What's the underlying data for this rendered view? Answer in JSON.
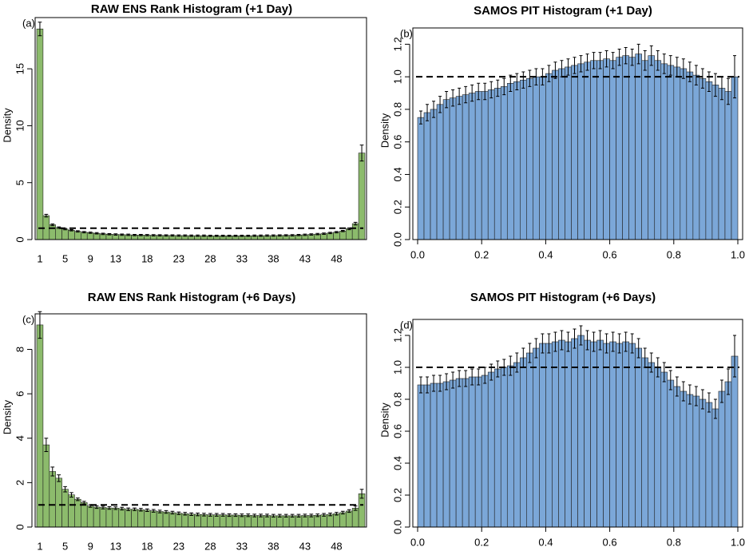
{
  "chart_data": [
    {
      "type": "bar",
      "title": "RAW ENS Rank Histogram (+1 Day)",
      "panel_label": "(a)",
      "ylabel": "Density",
      "color": "#8cbb6c",
      "hline": 1,
      "categories": [
        "1",
        null,
        null,
        null,
        "5",
        null,
        null,
        null,
        "9",
        null,
        null,
        null,
        "13",
        null,
        null,
        null,
        null,
        "18",
        null,
        null,
        null,
        null,
        "23",
        null,
        null,
        null,
        null,
        "28",
        null,
        null,
        null,
        null,
        "33",
        null,
        null,
        null,
        null,
        "38",
        null,
        null,
        null,
        null,
        "43",
        null,
        null,
        null,
        null,
        "48",
        null,
        null,
        null,
        null
      ],
      "values": [
        18.5,
        2.1,
        1.3,
        1.05,
        0.92,
        0.82,
        0.72,
        0.65,
        0.6,
        0.55,
        0.5,
        0.47,
        0.45,
        0.43,
        0.42,
        0.4,
        0.4,
        0.39,
        0.38,
        0.37,
        0.36,
        0.36,
        0.35,
        0.35,
        0.34,
        0.34,
        0.34,
        0.33,
        0.33,
        0.33,
        0.33,
        0.33,
        0.33,
        0.33,
        0.34,
        0.34,
        0.35,
        0.35,
        0.36,
        0.37,
        0.38,
        0.4,
        0.42,
        0.45,
        0.48,
        0.52,
        0.58,
        0.65,
        0.75,
        0.95,
        1.4,
        7.6
      ],
      "errors": [
        0.6,
        0.12,
        0.08,
        0.06,
        0.06,
        0.06,
        0.06,
        0.06,
        0.06,
        0.06,
        0.06,
        0.06,
        0.06,
        0.06,
        0.06,
        0.06,
        0.06,
        0.06,
        0.06,
        0.06,
        0.06,
        0.06,
        0.06,
        0.06,
        0.06,
        0.06,
        0.06,
        0.06,
        0.06,
        0.06,
        0.06,
        0.06,
        0.06,
        0.06,
        0.06,
        0.06,
        0.06,
        0.06,
        0.06,
        0.06,
        0.06,
        0.06,
        0.06,
        0.06,
        0.06,
        0.06,
        0.06,
        0.06,
        0.06,
        0.08,
        0.12,
        0.7
      ],
      "ylim": [
        0,
        19.5
      ],
      "yticks": [
        0,
        5,
        10,
        15
      ]
    },
    {
      "type": "histogram",
      "title": "SAMOS PIT Histogram (+1 Day)",
      "panel_label": "(b)",
      "ylabel": "Density",
      "color": "#7ba7d8",
      "hline": 1,
      "bins": [
        0,
        0.02,
        0.04,
        0.06,
        0.08,
        0.1,
        0.12,
        0.14,
        0.16,
        0.18,
        0.2,
        0.22,
        0.24,
        0.26,
        0.28,
        0.3,
        0.32,
        0.34,
        0.36,
        0.38,
        0.4,
        0.42,
        0.44,
        0.46,
        0.48,
        0.5,
        0.52,
        0.54,
        0.56,
        0.58,
        0.6,
        0.62,
        0.64,
        0.66,
        0.68,
        0.7,
        0.72,
        0.74,
        0.76,
        0.78,
        0.8,
        0.82,
        0.84,
        0.86,
        0.88,
        0.9,
        0.92,
        0.94,
        0.96,
        0.98,
        1
      ],
      "values": [
        0.75,
        0.78,
        0.8,
        0.83,
        0.86,
        0.87,
        0.88,
        0.89,
        0.9,
        0.91,
        0.91,
        0.92,
        0.93,
        0.94,
        0.96,
        0.97,
        0.98,
        0.99,
        1.0,
        1.0,
        1.02,
        1.04,
        1.05,
        1.06,
        1.07,
        1.08,
        1.09,
        1.1,
        1.1,
        1.11,
        1.1,
        1.12,
        1.13,
        1.12,
        1.14,
        1.1,
        1.13,
        1.1,
        1.08,
        1.07,
        1.06,
        1.05,
        1.03,
        1.01,
        0.99,
        0.97,
        0.95,
        0.93,
        0.91,
        1.0
      ],
      "errors": [
        0.04,
        0.05,
        0.05,
        0.05,
        0.05,
        0.05,
        0.05,
        0.05,
        0.05,
        0.05,
        0.05,
        0.05,
        0.05,
        0.05,
        0.05,
        0.05,
        0.05,
        0.05,
        0.05,
        0.05,
        0.05,
        0.05,
        0.05,
        0.05,
        0.05,
        0.05,
        0.05,
        0.05,
        0.05,
        0.05,
        0.05,
        0.05,
        0.05,
        0.05,
        0.06,
        0.06,
        0.06,
        0.06,
        0.06,
        0.06,
        0.06,
        0.06,
        0.06,
        0.06,
        0.06,
        0.06,
        0.07,
        0.07,
        0.08,
        0.13
      ],
      "xlim": [
        0,
        1
      ],
      "xticks": [
        {
          "value": 0,
          "label": "0.0"
        },
        {
          "value": 0.2,
          "label": "0.2"
        },
        {
          "value": 0.4,
          "label": "0.4"
        },
        {
          "value": 0.6,
          "label": "0.6"
        },
        {
          "value": 0.8,
          "label": "0.8"
        },
        {
          "value": 1,
          "label": "1.0"
        }
      ],
      "ylim": [
        0,
        1.3
      ],
      "yticks": [
        {
          "value": 0,
          "label": "0.0"
        },
        {
          "value": 0.2,
          "label": "0.2"
        },
        {
          "value": 0.4,
          "label": "0.4"
        },
        {
          "value": 0.6,
          "label": "0.6"
        },
        {
          "value": 0.8,
          "label": "0.8"
        },
        {
          "value": 1,
          "label": "1.0"
        },
        {
          "value": 1.2,
          "label": "1.2"
        }
      ]
    },
    {
      "type": "bar",
      "title": "RAW ENS Rank Histogram (+6 Days)",
      "panel_label": "(c)",
      "ylabel": "Density",
      "color": "#8cbb6c",
      "hline": 1,
      "categories": [
        "1",
        null,
        null,
        null,
        "5",
        null,
        null,
        null,
        "9",
        null,
        null,
        null,
        "13",
        null,
        null,
        null,
        null,
        "18",
        null,
        null,
        null,
        null,
        "23",
        null,
        null,
        null,
        null,
        "28",
        null,
        null,
        null,
        null,
        "33",
        null,
        null,
        null,
        null,
        "38",
        null,
        null,
        null,
        null,
        "43",
        null,
        null,
        null,
        null,
        "48",
        null,
        null,
        null,
        null
      ],
      "values": [
        9.1,
        3.7,
        2.5,
        2.2,
        1.7,
        1.45,
        1.25,
        1.1,
        0.95,
        0.9,
        0.88,
        0.86,
        0.85,
        0.83,
        0.8,
        0.8,
        0.78,
        0.76,
        0.73,
        0.7,
        0.68,
        0.65,
        0.62,
        0.6,
        0.58,
        0.57,
        0.56,
        0.55,
        0.55,
        0.55,
        0.54,
        0.54,
        0.53,
        0.53,
        0.52,
        0.52,
        0.52,
        0.51,
        0.51,
        0.51,
        0.51,
        0.51,
        0.52,
        0.52,
        0.53,
        0.55,
        0.57,
        0.6,
        0.65,
        0.72,
        0.85,
        1.5
      ],
      "errors": [
        0.6,
        0.3,
        0.2,
        0.15,
        0.12,
        0.1,
        0.06,
        0.06,
        0.06,
        0.06,
        0.06,
        0.06,
        0.06,
        0.06,
        0.06,
        0.06,
        0.06,
        0.06,
        0.06,
        0.06,
        0.06,
        0.06,
        0.06,
        0.06,
        0.06,
        0.06,
        0.06,
        0.06,
        0.06,
        0.06,
        0.06,
        0.06,
        0.06,
        0.06,
        0.06,
        0.06,
        0.06,
        0.06,
        0.06,
        0.06,
        0.06,
        0.06,
        0.06,
        0.06,
        0.06,
        0.06,
        0.06,
        0.06,
        0.06,
        0.06,
        0.1,
        0.2
      ],
      "ylim": [
        0,
        9.6
      ],
      "yticks": [
        0,
        2,
        4,
        6,
        8
      ]
    },
    {
      "type": "histogram",
      "title": "SAMOS PIT Histogram (+6 Days)",
      "panel_label": "(d)",
      "ylabel": "Density",
      "color": "#7ba7d8",
      "hline": 1,
      "bins": [
        0,
        0.02,
        0.04,
        0.06,
        0.08,
        0.1,
        0.12,
        0.14,
        0.16,
        0.18,
        0.2,
        0.22,
        0.24,
        0.26,
        0.28,
        0.3,
        0.32,
        0.34,
        0.36,
        0.38,
        0.4,
        0.42,
        0.44,
        0.46,
        0.48,
        0.5,
        0.52,
        0.54,
        0.56,
        0.58,
        0.6,
        0.62,
        0.64,
        0.66,
        0.68,
        0.7,
        0.72,
        0.74,
        0.76,
        0.78,
        0.8,
        0.82,
        0.84,
        0.86,
        0.88,
        0.9,
        0.92,
        0.94,
        0.96,
        0.98,
        1
      ],
      "values": [
        0.89,
        0.89,
        0.9,
        0.9,
        0.91,
        0.92,
        0.93,
        0.93,
        0.94,
        0.94,
        0.95,
        0.97,
        0.99,
        1.0,
        1.01,
        1.03,
        1.06,
        1.09,
        1.12,
        1.15,
        1.15,
        1.16,
        1.17,
        1.16,
        1.18,
        1.2,
        1.17,
        1.16,
        1.17,
        1.15,
        1.16,
        1.15,
        1.16,
        1.15,
        1.12,
        1.06,
        1.03,
        1.0,
        0.97,
        0.92,
        0.88,
        0.85,
        0.83,
        0.82,
        0.8,
        0.78,
        0.74,
        0.85,
        0.91,
        1.07
      ],
      "errors": [
        0.05,
        0.05,
        0.05,
        0.05,
        0.05,
        0.05,
        0.05,
        0.05,
        0.05,
        0.05,
        0.05,
        0.05,
        0.05,
        0.05,
        0.06,
        0.06,
        0.06,
        0.06,
        0.06,
        0.06,
        0.06,
        0.06,
        0.06,
        0.06,
        0.06,
        0.06,
        0.06,
        0.06,
        0.06,
        0.06,
        0.06,
        0.06,
        0.06,
        0.06,
        0.06,
        0.06,
        0.06,
        0.06,
        0.06,
        0.06,
        0.06,
        0.06,
        0.06,
        0.06,
        0.06,
        0.06,
        0.06,
        0.07,
        0.08,
        0.13
      ],
      "xlim": [
        0,
        1
      ],
      "xticks": [
        {
          "value": 0,
          "label": "0.0"
        },
        {
          "value": 0.2,
          "label": "0.2"
        },
        {
          "value": 0.4,
          "label": "0.4"
        },
        {
          "value": 0.6,
          "label": "0.6"
        },
        {
          "value": 0.8,
          "label": "0.8"
        },
        {
          "value": 1,
          "label": "1.0"
        }
      ],
      "ylim": [
        0,
        1.3
      ],
      "yticks": [
        {
          "value": 0,
          "label": "0.0"
        },
        {
          "value": 0.2,
          "label": "0.2"
        },
        {
          "value": 0.4,
          "label": "0.4"
        },
        {
          "value": 0.6,
          "label": "0.6"
        },
        {
          "value": 0.8,
          "label": "0.8"
        },
        {
          "value": 1,
          "label": "1.0"
        },
        {
          "value": 1.2,
          "label": "1.2"
        }
      ]
    }
  ]
}
